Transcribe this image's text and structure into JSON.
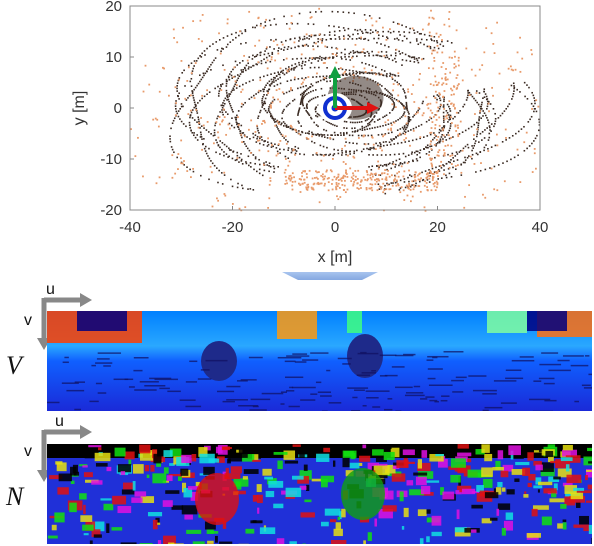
{
  "chart_data": {
    "type": "scatter",
    "title": "",
    "xlabel": "x [m]",
    "ylabel": "y [m]",
    "xlim": [
      -40,
      40
    ],
    "ylim": [
      -20,
      20
    ],
    "xticks": [
      "-40",
      "-20",
      "0",
      "20",
      "40"
    ],
    "yticks": [
      "20",
      "10",
      "0",
      "-10",
      "-20"
    ],
    "grid": false,
    "colors": {
      "near": "#3a2a22",
      "far": "#e89a6a",
      "x_axis": "#e01010",
      "y_axis": "#10a040",
      "origin_ring": "#1030d0"
    }
  },
  "range_image": {
    "label": "V",
    "axis_u": "u",
    "axis_v": "v"
  },
  "normal_image": {
    "label": "N",
    "axis_u": "u",
    "axis_v": "v"
  }
}
